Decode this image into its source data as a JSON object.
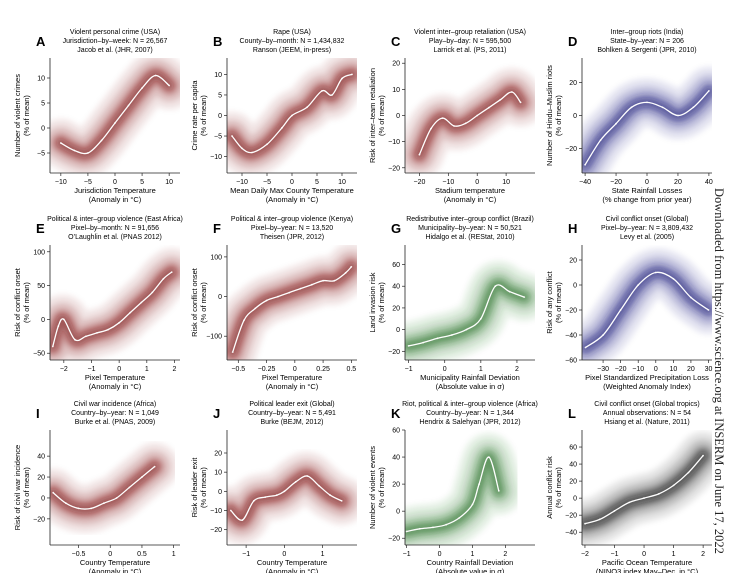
{
  "side_note": "Downloaded from https://www.science.org at INSERM on June 17, 2022",
  "colors": {
    "red": "#7a1212",
    "blue": "#1a1a78",
    "green": "#1e6b1e",
    "black": "#101010"
  },
  "chart_data": [
    {
      "letter": "A",
      "type": "line",
      "color": "red",
      "title": [
        "Violent personal crime (USA)",
        "Jurisdiction–by–week: N = 26,567",
        "Jacob et al. (JHR, 2007)"
      ],
      "ylabel": [
        "Number of violent crimes",
        "(% of mean)"
      ],
      "xlabel": [
        "Jurisdiction Temperature",
        "(Anomaly in °C)"
      ],
      "xlim": [
        -12,
        12
      ],
      "ylim": [
        -9,
        14
      ],
      "xticks": [
        -10,
        -5,
        0,
        5,
        10
      ],
      "yticks": [
        -5,
        0,
        5,
        10
      ],
      "x": [
        -10,
        -7.5,
        -5,
        -2.5,
        0,
        2.5,
        5,
        7.5,
        10
      ],
      "y": [
        -3,
        -4.5,
        -5,
        -2.5,
        1,
        4.5,
        8,
        10.5,
        8.5
      ]
    },
    {
      "letter": "B",
      "type": "line",
      "color": "red",
      "title": [
        "Rape (USA)",
        "County–by–month: N = 1,434,832",
        "Ranson (JEEM, in-press)"
      ],
      "ylabel": [
        "Crime rate per capita",
        "(% of mean)"
      ],
      "xlabel": [
        "Mean Daily Max County Temperature",
        "(Anomaly in °C)"
      ],
      "xlim": [
        -13,
        13
      ],
      "ylim": [
        -14,
        14
      ],
      "xticks": [
        -10,
        -5,
        0,
        5,
        10
      ],
      "yticks": [
        -10,
        -5,
        0,
        5,
        10
      ],
      "x": [
        -12,
        -10,
        -8,
        -5,
        -2,
        0,
        3,
        6,
        8,
        10,
        12
      ],
      "y": [
        -5,
        -8,
        -9,
        -7,
        -3,
        0,
        2,
        6,
        5,
        9,
        10
      ]
    },
    {
      "letter": "C",
      "type": "line",
      "color": "red",
      "title": [
        "Violent inter–group retaliation (USA)",
        "Play–by–day: N = 595,500",
        "Larrick et al. (PS, 2011)"
      ],
      "ylabel": [
        "Risk of inter–team retaliation",
        "(% of mean)"
      ],
      "xlabel": [
        "Stadium temperature",
        "(Anomaly in °C)"
      ],
      "xlim": [
        -25,
        20
      ],
      "ylim": [
        -22,
        22
      ],
      "xticks": [
        -20,
        -10,
        0,
        10
      ],
      "yticks": [
        -20,
        -10,
        0,
        10,
        20
      ],
      "x": [
        -20,
        -16,
        -12,
        -8,
        -4,
        0,
        4,
        8,
        12,
        15
      ],
      "y": [
        -15,
        -5,
        -1,
        -4,
        -3,
        0,
        3,
        6,
        9,
        5
      ]
    },
    {
      "letter": "D",
      "type": "line",
      "color": "blue",
      "title": [
        "Inter–group riots (India)",
        "State–by–year: N = 206",
        "Bohlken & Sergenti (JPR, 2010)"
      ],
      "ylabel": [
        "Number of Hindu–Muslim riots",
        "(% of mean)"
      ],
      "xlabel": [
        "State Rainfall Losses",
        "(% change from prior year)"
      ],
      "xlim": [
        -42,
        42
      ],
      "ylim": [
        -35,
        35
      ],
      "xticks": [
        -40,
        -20,
        0,
        20,
        40
      ],
      "yticks": [
        -20,
        0,
        20
      ],
      "x": [
        -40,
        -30,
        -20,
        -10,
        0,
        10,
        20,
        30,
        40
      ],
      "y": [
        -30,
        -15,
        -5,
        5,
        8,
        5,
        0,
        5,
        15
      ]
    },
    {
      "letter": "E",
      "type": "line",
      "color": "red",
      "title": [
        "Political & inter–group violence (East Africa)",
        "Pixel–by–month: N = 91,656",
        "O’Laughlin et al. (PNAS 2012)"
      ],
      "ylabel": [
        "Risk of conflict onset",
        "(% of mean)"
      ],
      "xlabel": [
        "Pixel Temperature",
        "(Anomaly in °C)"
      ],
      "xlim": [
        -2.5,
        2.2
      ],
      "ylim": [
        -60,
        110
      ],
      "xticks": [
        -2,
        -1,
        0,
        1,
        2
      ],
      "yticks": [
        -50,
        0,
        50,
        100
      ],
      "x": [
        -2.4,
        -2.2,
        -2,
        -1.6,
        -1.2,
        -0.8,
        -0.4,
        0,
        0.4,
        0.8,
        1.2,
        1.6,
        1.9
      ],
      "y": [
        -40,
        -10,
        0,
        -30,
        -25,
        -20,
        -15,
        -5,
        10,
        25,
        40,
        60,
        70
      ]
    },
    {
      "letter": "F",
      "type": "line",
      "color": "red",
      "title": [
        "Political & inter–group violence (Kenya)",
        "Pixel–by–year: N = 13,520",
        "Theisen (JPR, 2012)"
      ],
      "ylabel": [
        "Risk of conflict onset",
        "(% of mean)"
      ],
      "xlabel": [
        "Pixel Temperature",
        "(Anomaly in °C)"
      ],
      "xlim": [
        -0.6,
        0.55
      ],
      "ylim": [
        -160,
        130
      ],
      "xticks": [
        -0.5,
        -0.25,
        0,
        0.25,
        0.5
      ],
      "yticks": [
        -100,
        0,
        100
      ],
      "x": [
        -0.55,
        -0.45,
        -0.35,
        -0.25,
        -0.15,
        -0.05,
        0.05,
        0.15,
        0.25,
        0.35,
        0.45,
        0.5
      ],
      "y": [
        -140,
        -60,
        -30,
        -10,
        0,
        10,
        20,
        30,
        40,
        40,
        60,
        75
      ]
    },
    {
      "letter": "G",
      "type": "line",
      "color": "green",
      "title": [
        "Redistributive inter–group conflict (Brazil)",
        "Municipality–by–year: N = 50,521",
        "Hidalgo et al. (REStat, 2010)"
      ],
      "ylabel": [
        "Land invasion risk",
        "(% of mean)"
      ],
      "xlabel": [
        "Municipality Rainfall Deviation",
        "(Absolute value in σ)"
      ],
      "xlim": [
        -1.1,
        2.5
      ],
      "ylim": [
        -28,
        78
      ],
      "xticks": [
        -1,
        0,
        1,
        2
      ],
      "yticks": [
        -20,
        0,
        20,
        40,
        60
      ],
      "x": [
        -1,
        -0.6,
        -0.2,
        0.2,
        0.6,
        1,
        1.4,
        1.8,
        2.2
      ],
      "y": [
        -15,
        -12,
        -8,
        -5,
        0,
        10,
        40,
        35,
        30
      ]
    },
    {
      "letter": "H",
      "type": "line",
      "color": "blue",
      "title": [
        "Civil conflict onset (Global)",
        "Pixel–by–year: N = 3,809,432",
        "Levy et al. (2005)"
      ],
      "ylabel": [
        "Risk of any conflict",
        "(% of mean)"
      ],
      "xlabel": [
        "Pixel Standardized Precipitation Loss",
        "(Weighted Anomaly Index)"
      ],
      "xlim": [
        -42,
        32
      ],
      "ylim": [
        -60,
        32
      ],
      "xticks": [
        -30,
        -20,
        -10,
        0,
        10,
        20,
        30
      ],
      "yticks": [
        -60,
        -40,
        -20,
        0,
        20
      ],
      "x": [
        -40,
        -30,
        -20,
        -10,
        0,
        10,
        20,
        30
      ],
      "y": [
        -50,
        -40,
        -20,
        0,
        10,
        5,
        -10,
        -20
      ]
    },
    {
      "letter": "I",
      "type": "line",
      "color": "red",
      "title": [
        "Civil war incidence (Africa)",
        "Country–by–year: N = 1,049",
        "Burke et al. (PNAS, 2009)"
      ],
      "ylabel": [
        "Risk of civil war incidence",
        "(% of mean)"
      ],
      "xlabel": [
        "Country Temperature",
        "(Anomaly in °C)"
      ],
      "xlim": [
        -0.95,
        1.1
      ],
      "ylim": [
        -45,
        65
      ],
      "xticks": [
        -0.5,
        0,
        0.5,
        1
      ],
      "yticks": [
        -20,
        0,
        20,
        40
      ],
      "x": [
        -0.9,
        -0.7,
        -0.5,
        -0.3,
        -0.1,
        0.1,
        0.3,
        0.5,
        0.7
      ],
      "y": [
        5,
        -5,
        -10,
        -10,
        -5,
        0,
        10,
        20,
        30
      ]
    },
    {
      "letter": "J",
      "type": "line",
      "color": "red",
      "title": [
        "Political leader exit (Global)",
        "Country–by–year: N = 5,491",
        "Burke (BEJM, 2012)"
      ],
      "ylabel": [
        "Risk of leader exit",
        "(% of mean)"
      ],
      "xlabel": [
        "Country Temperature",
        "(Anomaly in °C)"
      ],
      "xlim": [
        -1.5,
        1.9
      ],
      "ylim": [
        -28,
        32
      ],
      "xticks": [
        -1,
        0,
        1
      ],
      "yticks": [
        -20,
        -10,
        0,
        10,
        20
      ],
      "x": [
        -1.4,
        -1.1,
        -0.8,
        -0.5,
        -0.2,
        0,
        0.3,
        0.6,
        0.9,
        1.2,
        1.5
      ],
      "y": [
        -10,
        -15,
        -5,
        -3,
        -2,
        0,
        5,
        8,
        3,
        -2,
        -5
      ]
    },
    {
      "letter": "K",
      "type": "line",
      "color": "green",
      "title": [
        "Riot, political & inter–group violence (Africa)",
        "Country–by–year: N = 1,344",
        "Hendrix & Salehyan (JPR, 2012)"
      ],
      "ylabel": [
        "Number of violent events",
        "(% of mean)"
      ],
      "xlabel": [
        "Country Rainfall Deviation",
        "(Absolute value in σ)"
      ],
      "xlim": [
        -1.05,
        2.9
      ],
      "ylim": [
        -25,
        60
      ],
      "xticks": [
        -1,
        0,
        1,
        2
      ],
      "yticks": [
        -20,
        0,
        20,
        40,
        60
      ],
      "x": [
        -1,
        -0.6,
        -0.2,
        0.2,
        0.6,
        1,
        1.2,
        1.5,
        1.8
      ],
      "y": [
        -15,
        -13,
        -12,
        -10,
        -5,
        5,
        20,
        40,
        15
      ]
    },
    {
      "letter": "L",
      "type": "line",
      "color": "black",
      "title": [
        "Civil conflict onset (Global tropics)",
        "Annual observations: N = 54",
        "Hsiang et al. (Nature, 2011)"
      ],
      "ylabel": [
        "Annual conflict risk",
        "(% of mean)"
      ],
      "xlabel": [
        "Pacific Ocean Temperature",
        "(NINO3 index May–Dec. in °C)"
      ],
      "xlim": [
        -2.1,
        2.3
      ],
      "ylim": [
        -55,
        80
      ],
      "xticks": [
        -2,
        -1,
        0,
        1,
        2
      ],
      "yticks": [
        -40,
        -20,
        0,
        20,
        40,
        60
      ],
      "x": [
        -2,
        -1.5,
        -1,
        -0.5,
        0,
        0.5,
        1,
        1.5,
        2
      ],
      "y": [
        -30,
        -25,
        -15,
        -5,
        0,
        5,
        15,
        30,
        50
      ]
    }
  ]
}
